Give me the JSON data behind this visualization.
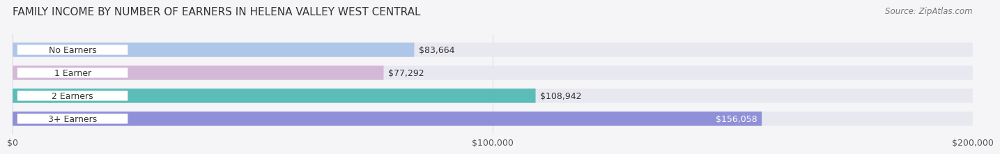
{
  "title": "FAMILY INCOME BY NUMBER OF EARNERS IN HELENA VALLEY WEST CENTRAL",
  "source": "Source: ZipAtlas.com",
  "categories": [
    "No Earners",
    "1 Earner",
    "2 Earners",
    "3+ Earners"
  ],
  "values": [
    83664,
    77292,
    108942,
    156058
  ],
  "bar_colors": [
    "#aec6e8",
    "#d4b8d8",
    "#5bbcb8",
    "#9090d8"
  ],
  "bar_bg_color": "#e8e8f0",
  "value_labels": [
    "$83,664",
    "$77,292",
    "$108,942",
    "$156,058"
  ],
  "label_inside_last": true,
  "xmax": 200000,
  "xticks": [
    0,
    100000,
    200000
  ],
  "xtick_labels": [
    "$0",
    "$100,000",
    "$200,000"
  ],
  "title_fontsize": 11,
  "source_fontsize": 8.5,
  "label_fontsize": 9,
  "value_fontsize": 9,
  "tick_fontsize": 9,
  "background_color": "#f5f5f8"
}
